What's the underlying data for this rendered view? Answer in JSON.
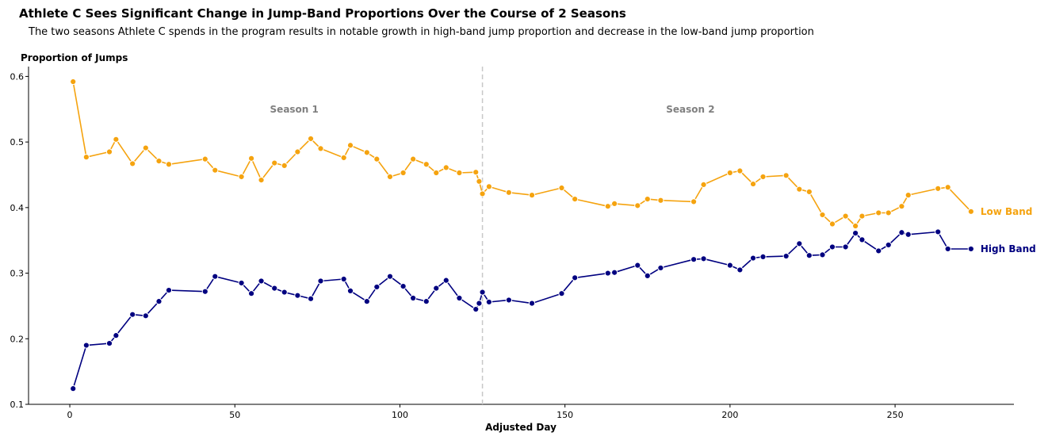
{
  "chart_data": {
    "type": "line",
    "title": "Athlete C Sees Significant Change in Jump-Band Proportions Over the Course of 2 Seasons",
    "subtitle": "The two seasons Athlete C spends in the program results in notable growth in high-band jump proportion and decrease in the low-band jump proportion",
    "xlabel": "Adjusted Day",
    "ylabel": "Proportion of Jumps",
    "xlim": [
      -12.5,
      286
    ],
    "ylim": [
      0.1,
      0.615
    ],
    "xticks": [
      0,
      50,
      100,
      150,
      200,
      250
    ],
    "yticks": [
      0.1,
      0.2,
      0.3,
      0.4,
      0.5,
      0.6
    ],
    "grid": false,
    "season_divider_x": 125,
    "season_labels": [
      {
        "text": "Season 1",
        "x": 68,
        "y": 0.55
      },
      {
        "text": "Season 2",
        "x": 188,
        "y": 0.55
      }
    ],
    "series": [
      {
        "name": "Low Band",
        "color": "#f5a30f",
        "x": [
          1,
          5,
          12,
          14,
          19,
          23,
          27,
          30,
          41,
          44,
          52,
          55,
          58,
          62,
          65,
          69,
          73,
          76,
          83,
          85,
          90,
          93,
          97,
          101,
          104,
          108,
          111,
          114,
          118,
          123,
          124,
          125,
          127,
          133,
          140,
          149,
          153,
          163,
          165,
          172,
          175,
          179,
          189,
          192,
          200,
          203,
          207,
          210,
          217,
          221,
          224,
          228,
          231,
          235,
          238,
          240,
          245,
          248,
          252,
          254,
          263,
          266,
          273
        ],
        "values": [
          0.592,
          0.477,
          0.485,
          0.504,
          0.467,
          0.491,
          0.471,
          0.466,
          0.474,
          0.457,
          0.447,
          0.475,
          0.442,
          0.468,
          0.464,
          0.485,
          0.505,
          0.49,
          0.476,
          0.495,
          0.484,
          0.474,
          0.447,
          0.453,
          0.474,
          0.466,
          0.453,
          0.461,
          0.453,
          0.454,
          0.44,
          0.421,
          0.432,
          0.423,
          0.419,
          0.43,
          0.413,
          0.402,
          0.406,
          0.403,
          0.413,
          0.411,
          0.409,
          0.435,
          0.453,
          0.456,
          0.436,
          0.447,
          0.449,
          0.428,
          0.424,
          0.389,
          0.375,
          0.387,
          0.372,
          0.387,
          0.392,
          0.392,
          0.402,
          0.419,
          0.429,
          0.431,
          0.394
        ]
      },
      {
        "name": "High Band",
        "color": "#000080",
        "x": [
          1,
          5,
          12,
          14,
          19,
          23,
          27,
          30,
          41,
          44,
          52,
          55,
          58,
          62,
          65,
          69,
          73,
          76,
          83,
          85,
          90,
          93,
          97,
          101,
          104,
          108,
          111,
          114,
          118,
          123,
          124,
          125,
          127,
          133,
          140,
          149,
          153,
          163,
          165,
          172,
          175,
          179,
          189,
          192,
          200,
          203,
          207,
          210,
          217,
          221,
          224,
          228,
          231,
          235,
          238,
          240,
          245,
          248,
          252,
          254,
          263,
          266,
          273
        ],
        "values": [
          0.124,
          0.19,
          0.193,
          0.205,
          0.237,
          0.235,
          0.257,
          0.274,
          0.272,
          0.295,
          0.285,
          0.269,
          0.288,
          0.277,
          0.271,
          0.266,
          0.261,
          0.288,
          0.291,
          0.273,
          0.257,
          0.279,
          0.295,
          0.28,
          0.262,
          0.257,
          0.277,
          0.289,
          0.262,
          0.245,
          0.254,
          0.271,
          0.256,
          0.259,
          0.254,
          0.269,
          0.293,
          0.3,
          0.301,
          0.312,
          0.296,
          0.308,
          0.321,
          0.322,
          0.312,
          0.305,
          0.323,
          0.325,
          0.326,
          0.345,
          0.327,
          0.328,
          0.34,
          0.34,
          0.361,
          0.351,
          0.334,
          0.343,
          0.362,
          0.359,
          0.363,
          0.337,
          0.337
        ]
      }
    ]
  }
}
